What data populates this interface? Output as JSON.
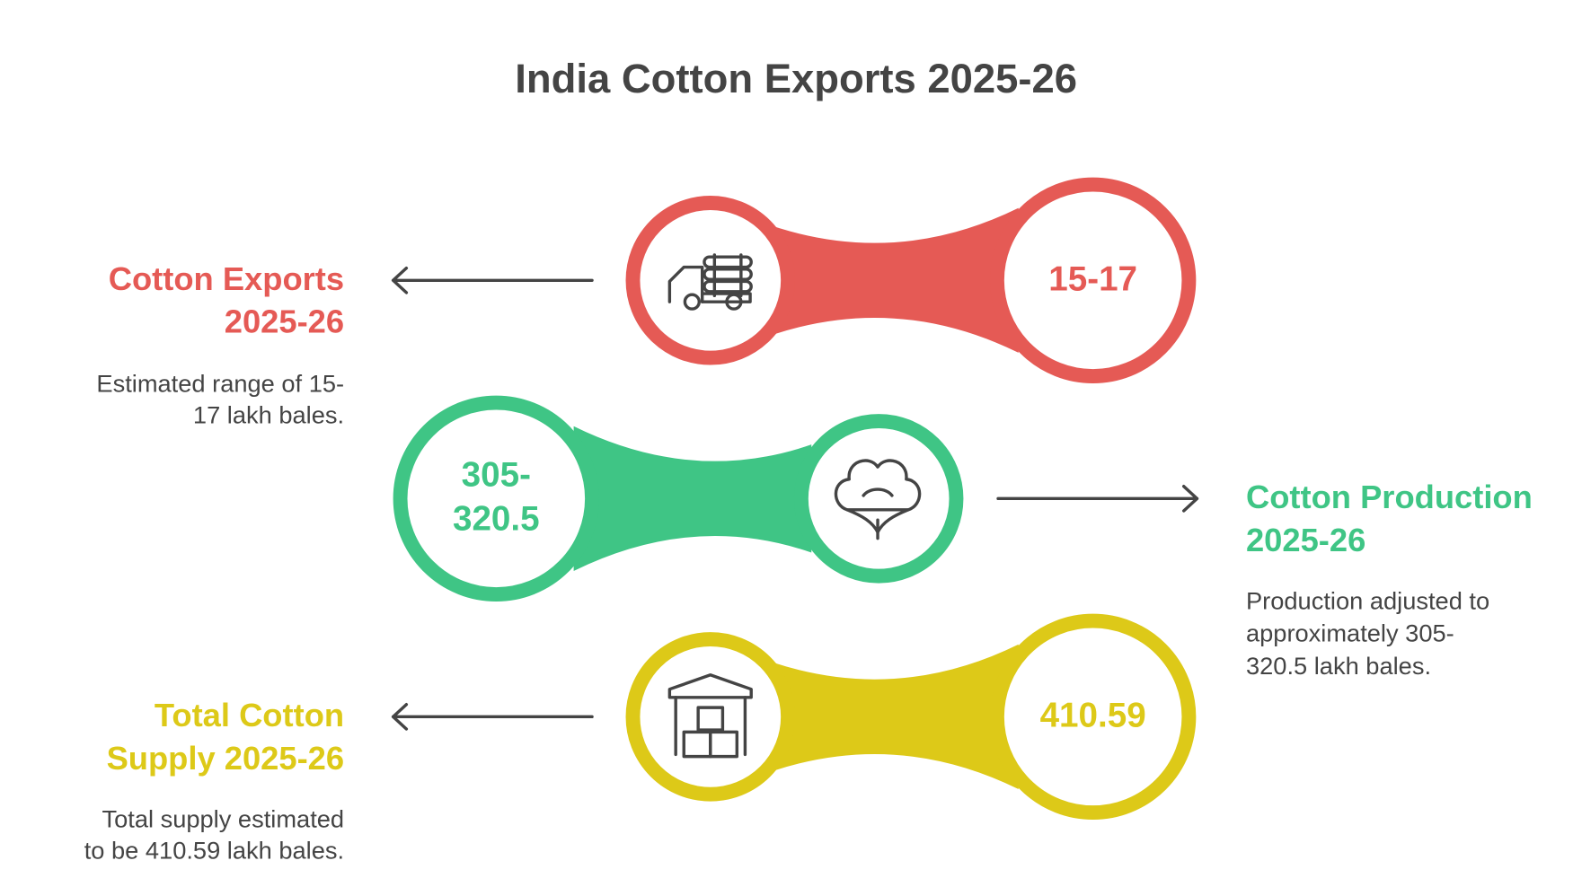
{
  "title": "India Cotton Exports 2025-26",
  "items": [
    {
      "heading": [
        "Cotton Exports",
        "2025-26"
      ],
      "description": [
        "Estimated range of 15-",
        "17 lakh bales."
      ],
      "value": [
        "15-17"
      ]
    },
    {
      "heading": [
        "Cotton Production",
        "2025-26"
      ],
      "description": [
        "Production adjusted to",
        "approximately 305-",
        "320.5 lakh bales."
      ],
      "value": [
        "305-",
        "320.5"
      ]
    },
    {
      "heading": [
        "Total Cotton",
        "Supply 2025-26"
      ],
      "description": [
        "Total supply estimated",
        "to be 410.59 lakh bales."
      ],
      "value": [
        "410.59"
      ]
    }
  ]
}
